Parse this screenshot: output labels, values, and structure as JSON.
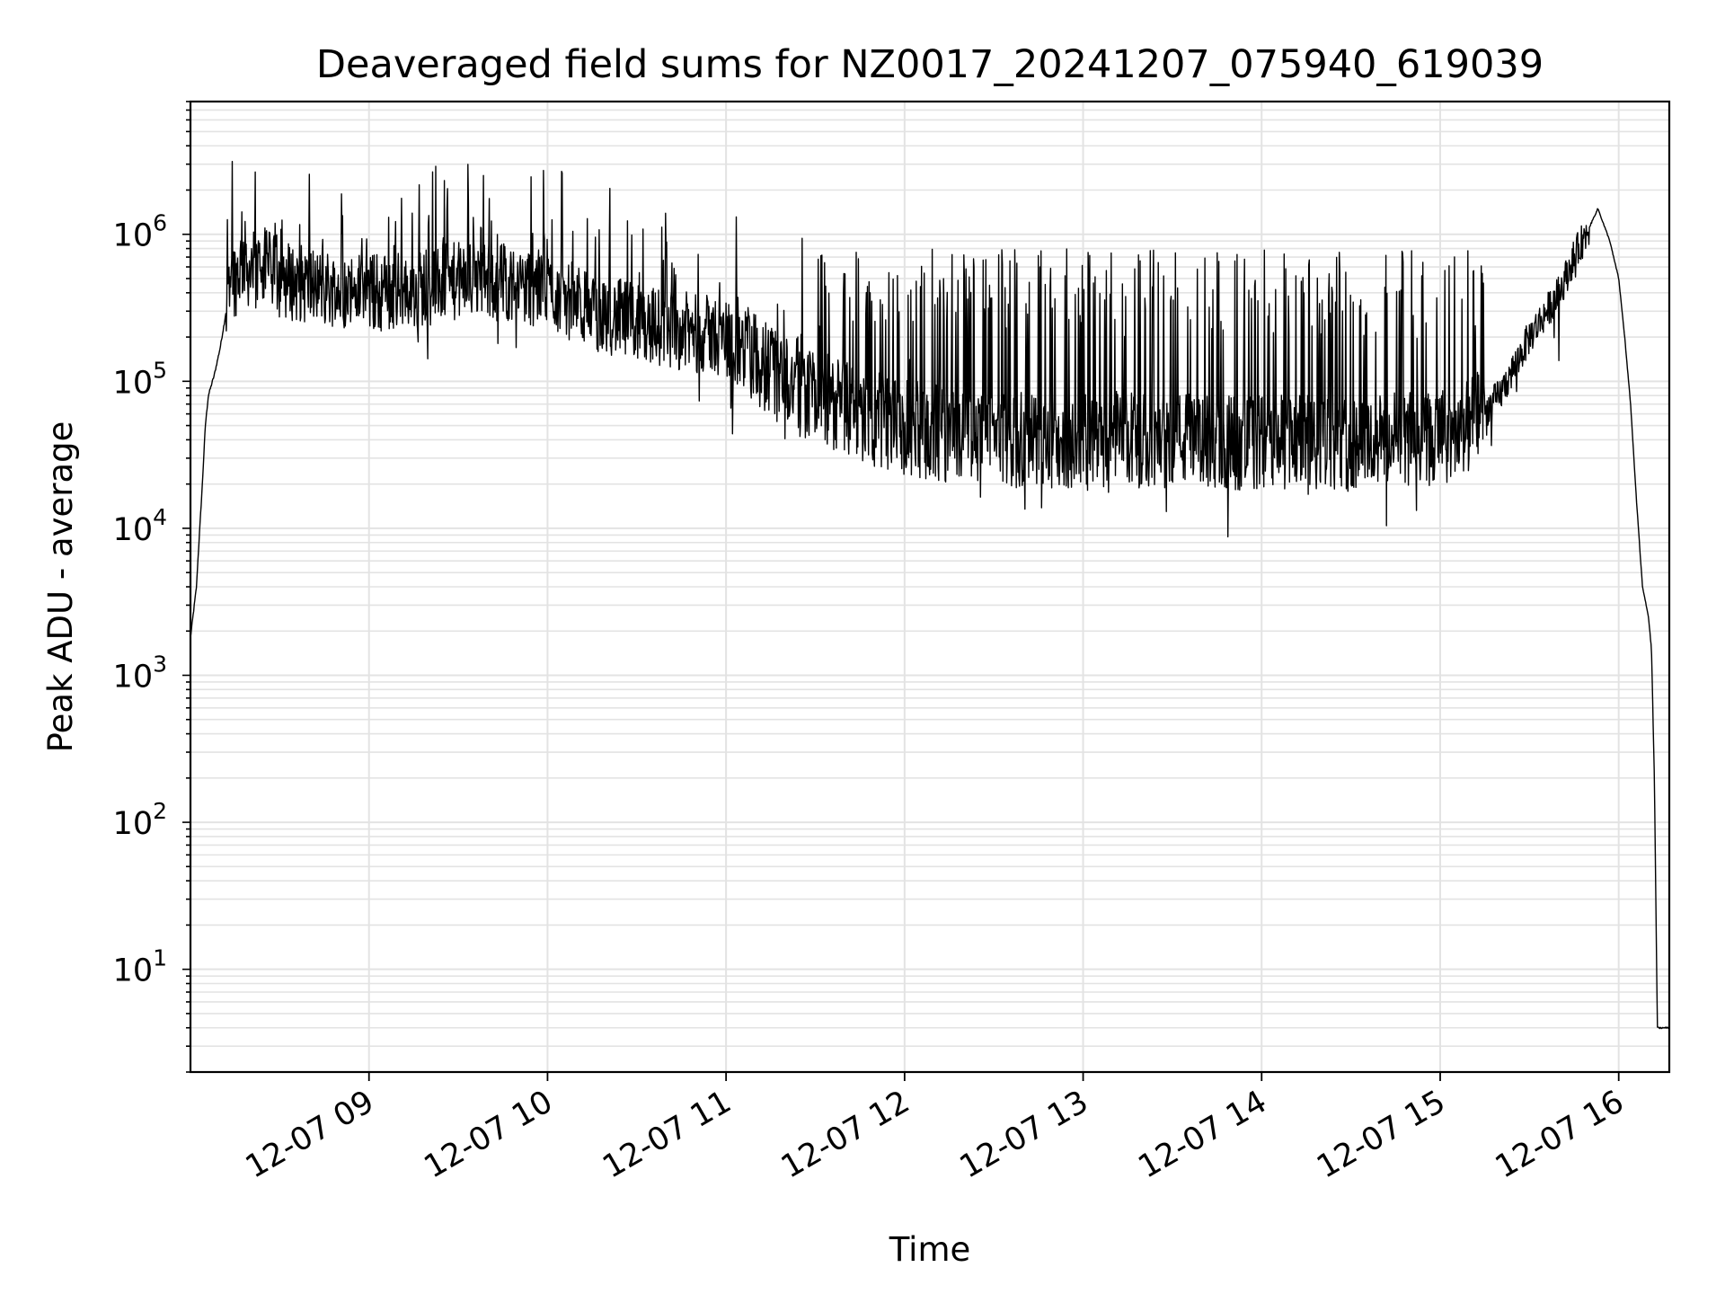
{
  "chart_data": {
    "type": "line",
    "title": "Deaveraged field sums for NZ0017_20241207_075940_619039",
    "xlabel": "Time",
    "ylabel": "Peak ADU - average",
    "y_scale": "log",
    "ylim": [
      2,
      8000000
    ],
    "xlim": [
      "2024-12-07 08:00",
      "2024-12-07 16:17"
    ],
    "grid": true,
    "line_color": "#000000",
    "grid_color": "#e3e3e3",
    "x_ticks": [
      {
        "value": "2024-12-07 09:00",
        "label": "12-07 09"
      },
      {
        "value": "2024-12-07 10:00",
        "label": "12-07 10"
      },
      {
        "value": "2024-12-07 11:00",
        "label": "12-07 11"
      },
      {
        "value": "2024-12-07 12:00",
        "label": "12-07 12"
      },
      {
        "value": "2024-12-07 13:00",
        "label": "12-07 13"
      },
      {
        "value": "2024-12-07 14:00",
        "label": "12-07 14"
      },
      {
        "value": "2024-12-07 15:00",
        "label": "12-07 15"
      },
      {
        "value": "2024-12-07 16:00",
        "label": "12-07 16"
      }
    ],
    "y_ticks": [
      {
        "value": 10,
        "base": "10",
        "exp": "1"
      },
      {
        "value": 100,
        "base": "10",
        "exp": "2"
      },
      {
        "value": 1000,
        "base": "10",
        "exp": "3"
      },
      {
        "value": 10000,
        "base": "10",
        "exp": "4"
      },
      {
        "value": 100000,
        "base": "10",
        "exp": "5"
      },
      {
        "value": 1000000,
        "base": "10",
        "exp": "6"
      }
    ],
    "series": [
      {
        "points": [
          [
            "2024-12-07 08:00",
            1800
          ],
          [
            "2024-12-07 08:02",
            4000
          ],
          [
            "2024-12-07 08:04",
            20000
          ],
          [
            "2024-12-07 08:05",
            50000
          ],
          [
            "2024-12-07 08:06",
            80000
          ],
          [
            "2024-12-07 08:08",
            110000
          ],
          [
            "2024-12-07 08:10",
            170000
          ],
          [
            "2024-12-07 08:12",
            300000
          ],
          [
            "2024-12-07 08:13",
            600000
          ],
          [
            "2024-12-07 08:15",
            500000
          ],
          [
            "2024-12-07 08:18",
            700000
          ],
          [
            "2024-12-07 08:20",
            550000
          ],
          [
            "2024-12-07 08:25",
            600000
          ],
          [
            "2024-12-07 08:30",
            500000
          ],
          [
            "2024-12-07 08:40",
            450000
          ],
          [
            "2024-12-07 08:50",
            420000
          ],
          [
            "2024-12-07 09:00",
            400000
          ],
          [
            "2024-12-07 09:15",
            420000
          ],
          [
            "2024-12-07 09:30",
            480000
          ],
          [
            "2024-12-07 09:45",
            480000
          ],
          [
            "2024-12-07 10:00",
            420000
          ],
          [
            "2024-12-07 10:15",
            300000
          ],
          [
            "2024-12-07 10:30",
            250000
          ],
          [
            "2024-12-07 10:45",
            220000
          ],
          [
            "2024-12-07 11:00",
            200000
          ],
          [
            "2024-12-07 11:15",
            120000
          ],
          [
            "2024-12-07 11:30",
            80000
          ],
          [
            "2024-12-07 11:45",
            60000
          ],
          [
            "2024-12-07 12:00",
            48000
          ],
          [
            "2024-12-07 12:30",
            40000
          ],
          [
            "2024-12-07 13:00",
            40000
          ],
          [
            "2024-12-07 13:30",
            40000
          ],
          [
            "2024-12-07 14:00",
            38000
          ],
          [
            "2024-12-07 14:30",
            38000
          ],
          [
            "2024-12-07 15:00",
            42000
          ],
          [
            "2024-12-07 15:10",
            48000
          ],
          [
            "2024-12-07 15:20",
            80000
          ],
          [
            "2024-12-07 15:30",
            200000
          ],
          [
            "2024-12-07 15:40",
            400000
          ],
          [
            "2024-12-07 15:45",
            700000
          ],
          [
            "2024-12-07 15:50",
            1100000
          ],
          [
            "2024-12-07 15:53",
            1500000
          ],
          [
            "2024-12-07 15:57",
            900000
          ],
          [
            "2024-12-07 16:00",
            500000
          ],
          [
            "2024-12-07 16:02",
            200000
          ],
          [
            "2024-12-07 16:04",
            70000
          ],
          [
            "2024-12-07 16:06",
            15000
          ],
          [
            "2024-12-07 16:08",
            4000
          ],
          [
            "2024-12-07 16:10",
            2500
          ],
          [
            "2024-12-07 16:11",
            1500
          ],
          [
            "2024-12-07 16:12",
            200
          ],
          [
            "2024-12-07 16:13",
            4
          ],
          [
            "2024-12-07 16:17",
            4
          ]
        ]
      }
    ]
  }
}
